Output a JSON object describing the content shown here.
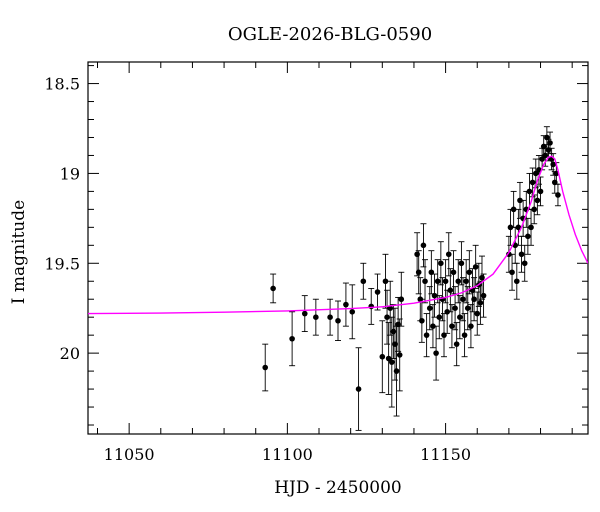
{
  "chart_data": {
    "type": "scatter",
    "title": "OGLE-2026-BLG-0590",
    "xlabel": "HJD - 2450000",
    "ylabel": "I magnitude",
    "xlim": [
      11037,
      11195
    ],
    "ylim": [
      20.45,
      18.38
    ],
    "y_inverted": true,
    "x_ticks": [
      11050,
      11100,
      11150
    ],
    "y_ticks": [
      18.5,
      19,
      19.5,
      20
    ],
    "y_tick_labels": [
      "18.5",
      "19",
      "19.5",
      "20"
    ],
    "grid": false,
    "legend": "none",
    "colors": {
      "points": "#000000",
      "model": "#ff00ff",
      "axes": "#000000"
    },
    "series": [
      {
        "kind": "points_with_errorbars",
        "points": [
          [
            11093,
            20.08,
            0.13
          ],
          [
            11095.5,
            19.64,
            0.08
          ],
          [
            11101.5,
            19.92,
            0.15
          ],
          [
            11105.5,
            19.78,
            0.1
          ],
          [
            11109,
            19.8,
            0.1
          ],
          [
            11113.5,
            19.8,
            0.1
          ],
          [
            11116,
            19.82,
            0.11
          ],
          [
            11118.5,
            19.73,
            0.12
          ],
          [
            11120.5,
            19.77,
            0.15
          ],
          [
            11122.5,
            20.2,
            0.23
          ],
          [
            11124,
            19.6,
            0.1
          ],
          [
            11126.5,
            19.74,
            0.1
          ],
          [
            11128.5,
            19.66,
            0.1
          ],
          [
            11130,
            20.02,
            0.2
          ],
          [
            11131,
            19.6,
            0.15
          ],
          [
            11131.5,
            19.8,
            0.15
          ],
          [
            11132,
            20.03,
            0.2
          ],
          [
            11132.5,
            19.75,
            0.15
          ],
          [
            11133,
            20.05,
            0.25
          ],
          [
            11133.5,
            19.88,
            0.15
          ],
          [
            11134,
            19.95,
            0.2
          ],
          [
            11134.5,
            20.1,
            0.25
          ],
          [
            11135,
            19.84,
            0.15
          ],
          [
            11135.5,
            20.01,
            0.2
          ],
          [
            11136,
            19.7,
            0.15
          ],
          [
            11141,
            19.45,
            0.12
          ],
          [
            11141.5,
            19.55,
            0.12
          ],
          [
            11142,
            19.7,
            0.12
          ],
          [
            11142.5,
            19.82,
            0.12
          ],
          [
            11143,
            19.4,
            0.12
          ],
          [
            11143.5,
            19.6,
            0.12
          ],
          [
            11144,
            19.9,
            0.12
          ],
          [
            11145,
            19.75,
            0.12
          ],
          [
            11145.5,
            19.55,
            0.12
          ],
          [
            11146,
            19.85,
            0.12
          ],
          [
            11146.5,
            19.68,
            0.12
          ],
          [
            11147,
            20.0,
            0.15
          ],
          [
            11147.5,
            19.6,
            0.12
          ],
          [
            11148,
            19.8,
            0.12
          ],
          [
            11148.5,
            19.5,
            0.12
          ],
          [
            11149,
            19.7,
            0.12
          ],
          [
            11149.5,
            19.9,
            0.12
          ],
          [
            11150,
            19.6,
            0.12
          ],
          [
            11150.5,
            19.77,
            0.12
          ],
          [
            11151,
            19.45,
            0.12
          ],
          [
            11151.5,
            19.65,
            0.12
          ],
          [
            11152,
            19.85,
            0.12
          ],
          [
            11152.5,
            19.55,
            0.12
          ],
          [
            11153,
            19.75,
            0.12
          ],
          [
            11153.5,
            19.95,
            0.12
          ],
          [
            11154,
            19.6,
            0.12
          ],
          [
            11154.5,
            19.8,
            0.12
          ],
          [
            11155,
            19.5,
            0.12
          ],
          [
            11155.5,
            19.7,
            0.12
          ],
          [
            11156,
            19.9,
            0.12
          ],
          [
            11156.5,
            19.6,
            0.12
          ],
          [
            11157,
            19.75,
            0.12
          ],
          [
            11157.5,
            19.55,
            0.12
          ],
          [
            11158,
            19.85,
            0.12
          ],
          [
            11158.5,
            19.65,
            0.12
          ],
          [
            11159,
            19.7,
            0.12
          ],
          [
            11159.5,
            19.52,
            0.12
          ],
          [
            11160,
            19.78,
            0.12
          ],
          [
            11160.5,
            19.62,
            0.12
          ],
          [
            11161,
            19.72,
            0.12
          ],
          [
            11161.5,
            19.58,
            0.12
          ],
          [
            11162,
            19.68,
            0.12
          ],
          [
            11170,
            19.45,
            0.1
          ],
          [
            11170.5,
            19.3,
            0.1
          ],
          [
            11171,
            19.55,
            0.1
          ],
          [
            11171.5,
            19.2,
            0.1
          ],
          [
            11172,
            19.4,
            0.1
          ],
          [
            11172.5,
            19.6,
            0.1
          ],
          [
            11173,
            19.3,
            0.1
          ],
          [
            11173.5,
            19.15,
            0.1
          ],
          [
            11174,
            19.45,
            0.1
          ],
          [
            11174.5,
            19.25,
            0.1
          ],
          [
            11175,
            19.5,
            0.1
          ],
          [
            11175.5,
            19.2,
            0.1
          ],
          [
            11176,
            19.35,
            0.1
          ],
          [
            11176.5,
            19.1,
            0.1
          ],
          [
            11177,
            19.3,
            0.1
          ],
          [
            11177.5,
            19.05,
            0.08
          ],
          [
            11178,
            19.2,
            0.08
          ],
          [
            11178.5,
            19.0,
            0.08
          ],
          [
            11179,
            19.15,
            0.08
          ],
          [
            11179.5,
            18.98,
            0.08
          ],
          [
            11180,
            19.1,
            0.08
          ],
          [
            11180.5,
            18.92,
            0.06
          ],
          [
            11181,
            18.85,
            0.06
          ],
          [
            11181.5,
            18.9,
            0.06
          ],
          [
            11182,
            18.8,
            0.06
          ],
          [
            11182.5,
            18.87,
            0.06
          ],
          [
            11183,
            18.83,
            0.06
          ],
          [
            11183.5,
            18.92,
            0.06
          ],
          [
            11184,
            18.95,
            0.06
          ],
          [
            11184.5,
            19.05,
            0.06
          ],
          [
            11185,
            19.0,
            0.06
          ],
          [
            11185.5,
            19.12,
            0.06
          ]
        ]
      },
      {
        "kind": "model_curve",
        "points": [
          [
            11037,
            19.78
          ],
          [
            11060,
            19.777
          ],
          [
            11080,
            19.772
          ],
          [
            11100,
            19.765
          ],
          [
            11120,
            19.752
          ],
          [
            11130,
            19.742
          ],
          [
            11140,
            19.722
          ],
          [
            11150,
            19.69
          ],
          [
            11155,
            19.665
          ],
          [
            11160,
            19.625
          ],
          [
            11165,
            19.56
          ],
          [
            11170,
            19.44
          ],
          [
            11174,
            19.3
          ],
          [
            11177,
            19.16
          ],
          [
            11179,
            19.04
          ],
          [
            11181,
            18.95
          ],
          [
            11182.5,
            18.91
          ],
          [
            11183.5,
            18.905
          ],
          [
            11184.5,
            18.92
          ],
          [
            11185.5,
            18.98
          ],
          [
            11187,
            19.1
          ],
          [
            11189,
            19.23
          ],
          [
            11191,
            19.34
          ],
          [
            11193,
            19.43
          ],
          [
            11195,
            19.5
          ]
        ]
      }
    ]
  }
}
